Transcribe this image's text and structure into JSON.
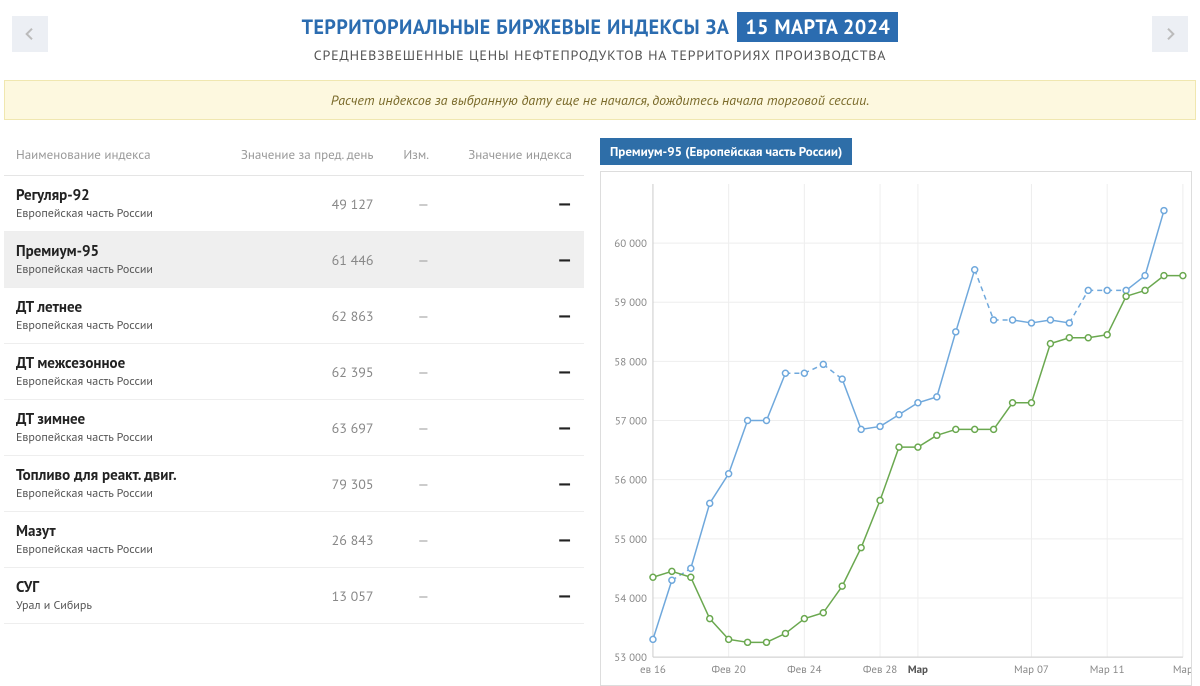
{
  "header": {
    "title_prefix": "ТЕРРИТОРИАЛЬНЫЕ БИРЖЕВЫЕ ИНДЕКСЫ ЗА",
    "date_badge": "15 МАРТА 2024",
    "subtitle": "СРЕДНЕВЗВЕШЕННЫЕ ЦЕНЫ НЕФТЕПРОДУКТОВ НА ТЕРРИТОРИЯХ ПРОИЗВОДСТВА"
  },
  "notice": "Расчет индексов за выбранную дату еще не начался, дождитесь начала торговой сессии.",
  "table": {
    "columns": [
      "Наименование индекса",
      "Значение за пред. день",
      "Изм.",
      "Значение индекса"
    ],
    "rows": [
      {
        "name": "Регуляр-92",
        "sub": "Европейская часть России",
        "prev": "49 127",
        "chg": "—",
        "val": "—",
        "selected": false
      },
      {
        "name": "Премиум-95",
        "sub": "Европейская часть России",
        "prev": "61 446",
        "chg": "—",
        "val": "—",
        "selected": true
      },
      {
        "name": "ДТ летнее",
        "sub": "Европейская часть России",
        "prev": "62 863",
        "chg": "—",
        "val": "—",
        "selected": false
      },
      {
        "name": "ДТ межсезонное",
        "sub": "Европейская часть России",
        "prev": "62 395",
        "chg": "—",
        "val": "—",
        "selected": false
      },
      {
        "name": "ДТ зимнее",
        "sub": "Европейская часть России",
        "prev": "63 697",
        "chg": "—",
        "val": "—",
        "selected": false
      },
      {
        "name": "Топливо для реакт. двиг.",
        "sub": "Европейская часть России",
        "prev": "79 305",
        "chg": "—",
        "val": "—",
        "selected": false
      },
      {
        "name": "Мазут",
        "sub": "Европейская часть России",
        "prev": "26 843",
        "chg": "—",
        "val": "—",
        "selected": false
      },
      {
        "name": "СУГ",
        "sub": "Урал и Сибирь",
        "prev": "13 057",
        "chg": "—",
        "val": "—",
        "selected": false
      }
    ]
  },
  "chart": {
    "title": "Премиум-95 (Европейская часть России)",
    "ylim": [
      53000,
      61000
    ],
    "ytick_step": 1000,
    "yticks": [
      "53 000",
      "54 000",
      "55 000",
      "56 000",
      "57 000",
      "58 000",
      "59 000",
      "60 000"
    ],
    "xticks": [
      {
        "label": "ев 16",
        "i": 0,
        "bold": false
      },
      {
        "label": "Фев 20",
        "i": 4,
        "bold": false
      },
      {
        "label": "Фев 24",
        "i": 8,
        "bold": false
      },
      {
        "label": "Фев 28",
        "i": 12,
        "bold": false
      },
      {
        "label": "Мар",
        "i": 14,
        "bold": true
      },
      {
        "label": "Мар 07",
        "i": 20,
        "bold": false
      },
      {
        "label": "Мар 11",
        "i": 24,
        "bold": false
      },
      {
        "label": "Мар",
        "i": 28,
        "bold": false
      }
    ],
    "n_points": 29,
    "series": [
      {
        "name": "blue",
        "color": "#6fa8dc",
        "marker": "circle",
        "dashed_segments": [
          [
            1,
            2
          ],
          [
            7,
            10
          ],
          [
            17,
            19
          ],
          [
            22,
            25
          ]
        ],
        "values": [
          53300,
          54300,
          54500,
          55600,
          56100,
          57000,
          57000,
          57800,
          57800,
          57950,
          57700,
          56850,
          56900,
          57100,
          57300,
          57400,
          58500,
          59550,
          58700,
          58700,
          58650,
          58700,
          58650,
          59200,
          59200,
          59200,
          59450,
          60550,
          null
        ]
      },
      {
        "name": "green",
        "color": "#6aa84f",
        "marker": "circle",
        "dashed_segments": [],
        "values": [
          54350,
          54450,
          54350,
          53650,
          53300,
          53250,
          53250,
          53400,
          53650,
          53750,
          54200,
          54850,
          55650,
          56550,
          56550,
          56750,
          56850,
          56850,
          56850,
          57300,
          57300,
          58300,
          58400,
          58400,
          58450,
          59100,
          59200,
          59450,
          59450
        ]
      }
    ],
    "background_color": "#ffffff",
    "grid_color": "#eeeeee",
    "axis_color": "#cccccc",
    "marker_radius": 3,
    "line_width": 1.5
  }
}
